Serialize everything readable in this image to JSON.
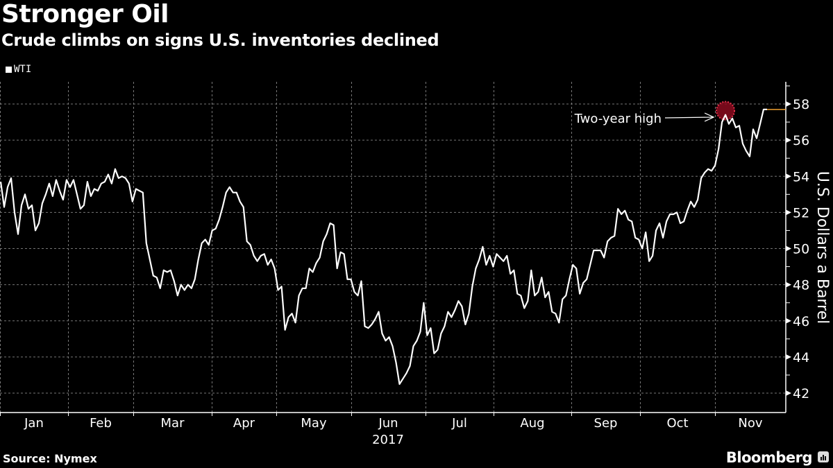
{
  "header": {
    "title": "Stronger Oil",
    "subtitle": "Crude climbs on signs U.S. inventories declined"
  },
  "footer": {
    "source": "Source: Nymex",
    "brand": "Bloomberg",
    "brand_icon": "bloomberg-chart-icon"
  },
  "colors": {
    "background": "#000000",
    "line": "#ffffff",
    "last_value_line": "#f0a030",
    "highlight": "#8b0a1e",
    "highlight_dots": "#e0304a",
    "grid": "#777777"
  },
  "chart_data": {
    "type": "line",
    "title": "Stronger Oil",
    "subtitle": "Crude climbs on signs U.S. inventories declined",
    "ylabel": "U.S. Dollars a Barrel",
    "xlabel": "2017",
    "ylim": [
      41,
      59
    ],
    "yticks": [
      42,
      44,
      46,
      48,
      50,
      52,
      54,
      56,
      58
    ],
    "ytick_labels": [
      "42",
      "44",
      "46",
      "48",
      "50",
      "52",
      "54",
      "56",
      "58"
    ],
    "x_tick_labels": [
      "Jan",
      "Feb",
      "Mar",
      "Apr",
      "May",
      "Jun",
      "Jul",
      "Aug",
      "Sep",
      "Oct",
      "Nov"
    ],
    "year_label": "2017",
    "grid": true,
    "legend": {
      "position": "top-left",
      "entries": [
        "WTI"
      ]
    },
    "annotation": {
      "text": "Two-year high",
      "value": 57.4
    },
    "last_value": 57.7,
    "series": [
      {
        "name": "WTI",
        "values": [
          53.7,
          52.3,
          53.4,
          53.9,
          52.0,
          50.8,
          52.4,
          53.0,
          52.2,
          52.4,
          51.0,
          51.4,
          52.5,
          53.0,
          53.6,
          52.9,
          53.8,
          53.2,
          52.7,
          53.8,
          53.4,
          53.8,
          53.0,
          52.2,
          52.4,
          53.7,
          52.9,
          53.3,
          53.2,
          53.6,
          53.7,
          54.1,
          53.6,
          54.4,
          53.9,
          54.0,
          53.9,
          53.6,
          52.6,
          53.3,
          53.2,
          53.1,
          50.3,
          49.4,
          48.5,
          48.4,
          47.8,
          48.8,
          48.7,
          48.8,
          48.2,
          47.4,
          48.0,
          47.7,
          48.0,
          47.8,
          48.3,
          49.4,
          50.3,
          50.5,
          50.2,
          51.0,
          51.1,
          51.6,
          52.3,
          53.1,
          53.4,
          53.1,
          53.1,
          52.6,
          52.3,
          50.4,
          50.2,
          49.6,
          49.3,
          49.6,
          49.7,
          49.1,
          49.4,
          48.9,
          47.7,
          47.9,
          45.5,
          46.2,
          46.4,
          45.9,
          47.4,
          47.8,
          47.8,
          48.9,
          48.7,
          49.2,
          49.5,
          50.4,
          50.8,
          51.4,
          51.3,
          48.9,
          49.8,
          49.7,
          48.3,
          48.3,
          47.6,
          47.4,
          48.2,
          45.7,
          45.6,
          45.8,
          46.1,
          46.5,
          45.3,
          44.9,
          45.1,
          44.6,
          43.7,
          42.5,
          42.8,
          43.1,
          43.5,
          44.6,
          44.9,
          45.4,
          47.0,
          45.2,
          45.6,
          44.2,
          44.4,
          45.3,
          45.7,
          46.5,
          46.2,
          46.6,
          47.1,
          46.8,
          45.8,
          46.4,
          47.9,
          48.9,
          49.4,
          50.1,
          49.1,
          49.6,
          49.0,
          49.7,
          49.5,
          49.3,
          49.6,
          48.6,
          48.8,
          47.5,
          47.4,
          46.7,
          47.1,
          48.8,
          47.4,
          47.6,
          48.4,
          47.3,
          47.6,
          46.5,
          46.4,
          45.9,
          47.2,
          47.4,
          48.3,
          49.1,
          48.9,
          47.5,
          48.1,
          48.3,
          49.1,
          49.9,
          49.9,
          49.9,
          49.5,
          50.4,
          50.6,
          50.7,
          52.2,
          51.9,
          52.1,
          51.6,
          51.5,
          50.6,
          50.5,
          50.0,
          50.9,
          49.3,
          49.6,
          51.0,
          51.4,
          50.6,
          51.5,
          51.9,
          51.9,
          52.0,
          51.4,
          51.5,
          52.1,
          52.6,
          52.3,
          52.7,
          53.9,
          54.2,
          54.4,
          54.3,
          54.6,
          55.5,
          57.0,
          57.4,
          56.9,
          57.2,
          56.7,
          56.8,
          55.8,
          55.4,
          55.1,
          56.6,
          56.1,
          56.9,
          57.7,
          57.7
        ]
      }
    ]
  }
}
